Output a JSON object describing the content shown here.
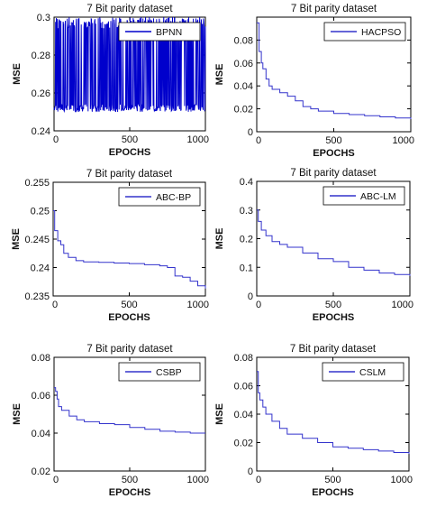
{
  "chart_data": [
    {
      "type": "line",
      "title": "7 Bit parity dataset",
      "xlabel": "EPOCHS",
      "ylabel": "MSE",
      "xlim": [
        0,
        1000
      ],
      "ylim": [
        0.24,
        0.3
      ],
      "xticks": [
        0,
        500,
        1000
      ],
      "yticks": [
        0.24,
        0.26,
        0.28,
        0.3
      ],
      "legend_position": "top-right",
      "color": "#0000cc",
      "series": [
        {
          "name": "BPNN",
          "style": "oscillating",
          "x": [
            0,
            40,
            80,
            120,
            160,
            200,
            240,
            280,
            320,
            360,
            400,
            440,
            480,
            520,
            560,
            600,
            640,
            680,
            720,
            760,
            800,
            840,
            880,
            920,
            960,
            1000
          ],
          "y": [
            0.27,
            0.3,
            0.25,
            0.29,
            0.25,
            0.3,
            0.26,
            0.29,
            0.25,
            0.3,
            0.25,
            0.29,
            0.26,
            0.3,
            0.25,
            0.29,
            0.25,
            0.3,
            0.26,
            0.29,
            0.25,
            0.3,
            0.25,
            0.29,
            0.26,
            0.28
          ]
        }
      ]
    },
    {
      "type": "line",
      "title": "7 Bit parity dataset",
      "xlabel": "EPOCHS",
      "ylabel": "MSE",
      "xlim": [
        0,
        1000
      ],
      "ylim": [
        0,
        0.1
      ],
      "xticks": [
        0,
        500,
        1000
      ],
      "yticks": [
        0,
        0.02,
        0.04,
        0.06,
        0.08
      ],
      "legend_position": "top-right",
      "color": "#3333cc",
      "series": [
        {
          "name": "HACPSO",
          "x": [
            0,
            15,
            30,
            40,
            60,
            80,
            100,
            150,
            200,
            250,
            300,
            350,
            400,
            500,
            600,
            700,
            800,
            900,
            1000
          ],
          "y": [
            0.095,
            0.07,
            0.06,
            0.055,
            0.046,
            0.04,
            0.037,
            0.034,
            0.031,
            0.027,
            0.022,
            0.02,
            0.018,
            0.016,
            0.015,
            0.014,
            0.013,
            0.012,
            0.011
          ]
        }
      ]
    },
    {
      "type": "line",
      "title": "7 Bit parity dataset",
      "xlabel": "EPOCHS",
      "ylabel": "MSE",
      "xlim": [
        0,
        1000
      ],
      "ylim": [
        0.235,
        0.255
      ],
      "xticks": [
        0,
        500,
        1000
      ],
      "yticks": [
        0.235,
        0.24,
        0.245,
        0.25,
        0.255
      ],
      "legend_position": "top-right",
      "color": "#3333cc",
      "series": [
        {
          "name": "ABC-BP",
          "x": [
            0,
            10,
            30,
            50,
            70,
            100,
            150,
            200,
            300,
            400,
            500,
            600,
            700,
            750,
            800,
            850,
            900,
            950,
            1000
          ],
          "y": [
            0.25,
            0.2465,
            0.2447,
            0.244,
            0.2425,
            0.2418,
            0.2412,
            0.241,
            0.2409,
            0.2408,
            0.2407,
            0.2405,
            0.2403,
            0.24,
            0.2385,
            0.2383,
            0.2376,
            0.2368,
            0.2363
          ]
        }
      ]
    },
    {
      "type": "line",
      "title": "7 Bit parity dataset",
      "xlabel": "EPOCHS",
      "ylabel": "MSE",
      "xlim": [
        0,
        1000
      ],
      "ylim": [
        0,
        0.4
      ],
      "xticks": [
        0,
        500,
        1000
      ],
      "yticks": [
        0,
        0.1,
        0.2,
        0.3,
        0.4
      ],
      "legend_position": "top-right",
      "color": "#3333cc",
      "series": [
        {
          "name": "ABC-LM",
          "x": [
            0,
            10,
            30,
            60,
            100,
            150,
            200,
            300,
            400,
            500,
            600,
            700,
            800,
            900,
            1000
          ],
          "y": [
            0.3,
            0.26,
            0.23,
            0.21,
            0.19,
            0.18,
            0.17,
            0.15,
            0.13,
            0.12,
            0.1,
            0.09,
            0.08,
            0.075,
            0.07
          ]
        }
      ]
    },
    {
      "type": "line",
      "title": "7 Bit parity dataset",
      "xlabel": "EPOCHS",
      "ylabel": "MSE",
      "xlim": [
        0,
        1000
      ],
      "ylim": [
        0.02,
        0.08
      ],
      "xticks": [
        0,
        500,
        1000
      ],
      "yticks": [
        0.02,
        0.04,
        0.06,
        0.08
      ],
      "legend_position": "top-right",
      "color": "#3333cc",
      "series": [
        {
          "name": "CSBP",
          "x": [
            0,
            10,
            20,
            30,
            50,
            100,
            150,
            200,
            300,
            400,
            500,
            600,
            700,
            800,
            900,
            1000
          ],
          "y": [
            0.064,
            0.062,
            0.058,
            0.054,
            0.052,
            0.049,
            0.047,
            0.046,
            0.045,
            0.0445,
            0.043,
            0.042,
            0.041,
            0.0405,
            0.04,
            0.04
          ]
        }
      ]
    },
    {
      "type": "line",
      "title": "7 Bit parity dataset",
      "xlabel": "EPOCHS",
      "ylabel": "MSE",
      "xlim": [
        0,
        1000
      ],
      "ylim": [
        0,
        0.08
      ],
      "xticks": [
        0,
        500,
        1000
      ],
      "yticks": [
        0,
        0.02,
        0.04,
        0.06,
        0.08
      ],
      "legend_position": "top-right",
      "color": "#3333cc",
      "series": [
        {
          "name": "CSLM",
          "x": [
            0,
            10,
            20,
            40,
            60,
            100,
            150,
            200,
            300,
            400,
            500,
            600,
            700,
            800,
            900,
            1000
          ],
          "y": [
            0.07,
            0.055,
            0.05,
            0.045,
            0.04,
            0.035,
            0.03,
            0.026,
            0.023,
            0.02,
            0.017,
            0.016,
            0.015,
            0.014,
            0.013,
            0.012
          ]
        }
      ]
    }
  ]
}
